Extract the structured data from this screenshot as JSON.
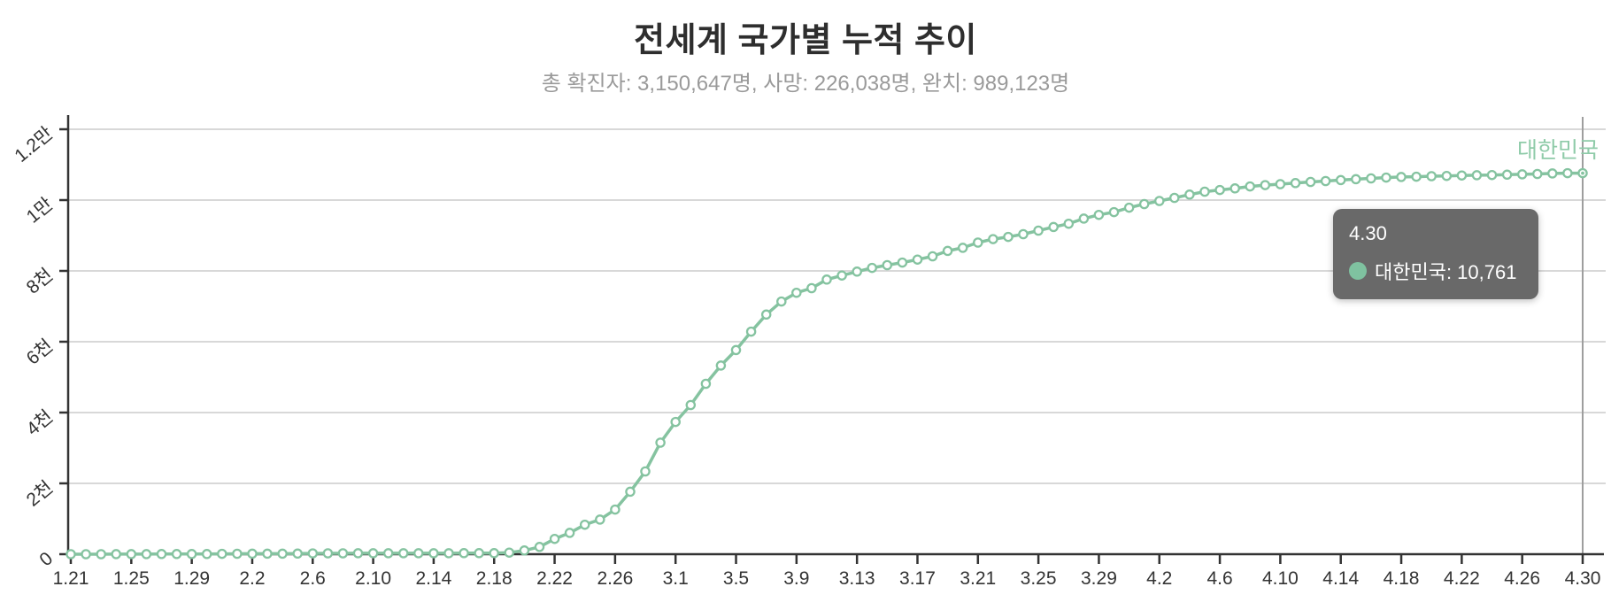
{
  "header": {
    "title": "전세계 국가별 누적 추이",
    "subtitle": "총 확진자: 3,150,647명, 사망: 226,038명, 완치: 989,123명"
  },
  "tooltip": {
    "date": "4.30",
    "series": "대한민국",
    "value": "10,761",
    "label": "대한민국: 10,761"
  },
  "colors": {
    "line": "#85c3a0",
    "marker_fill": "#ffffff",
    "series_label": "#8fcba9",
    "tooltip_bg": "#696969",
    "tooltip_text": "#ffffff",
    "tooltip_dot": "#7fc2a0",
    "axis": "#333333",
    "grid": "#d8d8d8",
    "crosshair": "#9e9e9e",
    "tick_text": "#333333",
    "title_text": "#2e2e2e",
    "subtitle_text": "#9a9a9a"
  },
  "chart_data": {
    "type": "line",
    "title": "전세계 국가별 누적 추이",
    "xlabel": "",
    "ylabel": "",
    "ylim": [
      0,
      12000
    ],
    "grid": "horizontal-only",
    "legend_position": "inline-end-of-line",
    "x_label_every": 4,
    "y_ticks": {
      "values": [
        0,
        2000,
        4000,
        6000,
        8000,
        10000,
        12000
      ],
      "labels": [
        "0",
        "2천",
        "4천",
        "6천",
        "8천",
        "1만",
        "1.2만"
      ]
    },
    "x_tick_labels": [
      "1.21",
      "1.25",
      "1.29",
      "2.2",
      "2.6",
      "2.10",
      "2.14",
      "2.18",
      "2.22",
      "2.26",
      "3.1",
      "3.5",
      "3.9",
      "3.13",
      "3.17",
      "3.21",
      "3.25",
      "3.29",
      "4.2",
      "4.6",
      "4.10",
      "4.14",
      "4.18",
      "4.22",
      "4.26",
      "4.30"
    ],
    "x": [
      "1.21",
      "1.22",
      "1.23",
      "1.24",
      "1.25",
      "1.26",
      "1.27",
      "1.28",
      "1.29",
      "1.30",
      "1.31",
      "2.1",
      "2.2",
      "2.3",
      "2.4",
      "2.5",
      "2.6",
      "2.7",
      "2.8",
      "2.9",
      "2.10",
      "2.11",
      "2.12",
      "2.13",
      "2.14",
      "2.15",
      "2.16",
      "2.17",
      "2.18",
      "2.19",
      "2.20",
      "2.21",
      "2.22",
      "2.23",
      "2.24",
      "2.25",
      "2.26",
      "2.27",
      "2.28",
      "2.29",
      "3.1",
      "3.2",
      "3.3",
      "3.4",
      "3.5",
      "3.6",
      "3.7",
      "3.8",
      "3.9",
      "3.10",
      "3.11",
      "3.12",
      "3.13",
      "3.14",
      "3.15",
      "3.16",
      "3.17",
      "3.18",
      "3.19",
      "3.20",
      "3.21",
      "3.22",
      "3.23",
      "3.24",
      "3.25",
      "3.26",
      "3.27",
      "3.28",
      "3.29",
      "3.30",
      "3.31",
      "4.1",
      "4.2",
      "4.3",
      "4.4",
      "4.5",
      "4.6",
      "4.7",
      "4.8",
      "4.9",
      "4.10",
      "4.11",
      "4.12",
      "4.13",
      "4.14",
      "4.15",
      "4.16",
      "4.17",
      "4.18",
      "4.19",
      "4.20",
      "4.21",
      "4.22",
      "4.23",
      "4.24",
      "4.25",
      "4.26",
      "4.27",
      "4.28",
      "4.29",
      "4.30"
    ],
    "series": [
      {
        "name": "대한민국",
        "values": [
          1,
          1,
          1,
          2,
          2,
          3,
          4,
          4,
          4,
          6,
          11,
          12,
          15,
          15,
          16,
          18,
          23,
          24,
          24,
          27,
          27,
          28,
          28,
          28,
          28,
          28,
          29,
          30,
          31,
          46,
          104,
          204,
          433,
          602,
          833,
          977,
          1261,
          1766,
          2337,
          3150,
          3736,
          4212,
          4812,
          5328,
          5766,
          6284,
          6767,
          7134,
          7382,
          7513,
          7755,
          7869,
          7979,
          8086,
          8162,
          8236,
          8320,
          8413,
          8565,
          8652,
          8799,
          8897,
          8961,
          9037,
          9137,
          9241,
          9332,
          9478,
          9583,
          9661,
          9786,
          9887,
          9976,
          10062,
          10156,
          10237,
          10284,
          10331,
          10384,
          10423,
          10450,
          10480,
          10512,
          10537,
          10564,
          10591,
          10613,
          10635,
          10653,
          10661,
          10674,
          10683,
          10694,
          10702,
          10708,
          10718,
          10728,
          10738,
          10752,
          10761,
          10761
        ]
      }
    ],
    "highlight": {
      "x": "4.30",
      "value": 10761
    }
  }
}
